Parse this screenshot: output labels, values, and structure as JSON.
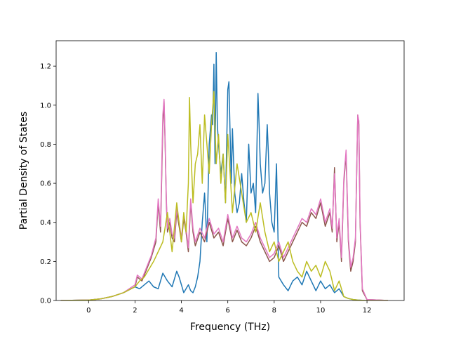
{
  "chart_data": {
    "type": "line",
    "title": "",
    "xlabel": "Frequency (THz)",
    "ylabel": "Partial Density of States",
    "xlim": [
      -1.4,
      13.6
    ],
    "ylim": [
      0,
      1.33
    ],
    "xticks": [
      0,
      2,
      4,
      6,
      8,
      10,
      12
    ],
    "yticks": [
      0.0,
      0.2,
      0.4,
      0.6,
      0.8,
      1.0,
      1.2
    ],
    "grid": false,
    "legend": "none",
    "series": [
      {
        "color": "#1f77b4",
        "x": [
          -1.2,
          0,
          0.5,
          1,
          1.5,
          2,
          2.2,
          2.4,
          2.6,
          2.8,
          3.0,
          3.2,
          3.4,
          3.6,
          3.8,
          3.9,
          4.0,
          4.1,
          4.2,
          4.3,
          4.4,
          4.5,
          4.6,
          4.7,
          4.8,
          4.9,
          5.0,
          5.1,
          5.2,
          5.3,
          5.35,
          5.4,
          5.45,
          5.5,
          5.55,
          5.6,
          5.7,
          5.8,
          5.9,
          6.0,
          6.05,
          6.1,
          6.15,
          6.2,
          6.3,
          6.4,
          6.5,
          6.6,
          6.7,
          6.8,
          6.9,
          7.0,
          7.1,
          7.2,
          7.3,
          7.35,
          7.4,
          7.5,
          7.6,
          7.7,
          7.75,
          7.8,
          7.9,
          8.0,
          8.1,
          8.2,
          8.4,
          8.6,
          8.8,
          9.0,
          9.2,
          9.4,
          9.6,
          9.8,
          10.0,
          10.2,
          10.4,
          10.6,
          10.8,
          11.0,
          11.2,
          11.4,
          11.6,
          11.8,
          12.0,
          12.9
        ],
        "y": [
          0,
          0.002,
          0.008,
          0.02,
          0.04,
          0.07,
          0.06,
          0.08,
          0.1,
          0.07,
          0.06,
          0.14,
          0.1,
          0.07,
          0.15,
          0.12,
          0.08,
          0.04,
          0.06,
          0.08,
          0.05,
          0.04,
          0.07,
          0.12,
          0.2,
          0.4,
          0.55,
          0.3,
          0.8,
          0.95,
          0.9,
          1.21,
          0.7,
          1.27,
          0.9,
          0.8,
          0.65,
          0.75,
          0.5,
          1.08,
          1.12,
          0.85,
          0.6,
          0.88,
          0.55,
          0.45,
          0.5,
          0.65,
          0.5,
          0.4,
          0.8,
          0.55,
          0.6,
          0.45,
          1.06,
          0.9,
          0.7,
          0.55,
          0.6,
          0.9,
          0.75,
          0.55,
          0.4,
          0.35,
          0.7,
          0.12,
          0.08,
          0.05,
          0.1,
          0.12,
          0.08,
          0.15,
          0.1,
          0.05,
          0.1,
          0.06,
          0.08,
          0.04,
          0.06,
          0.02,
          0.01,
          0.005,
          0.002,
          0.001,
          0,
          0
        ]
      },
      {
        "color": "#8c564b",
        "x": [
          -1.2,
          0,
          0.5,
          1,
          1.5,
          2,
          2.1,
          2.3,
          2.5,
          2.7,
          2.9,
          3.0,
          3.1,
          3.2,
          3.25,
          3.3,
          3.35,
          3.4,
          3.5,
          3.6,
          3.7,
          3.8,
          3.9,
          4.0,
          4.1,
          4.2,
          4.3,
          4.4,
          4.5,
          4.6,
          4.8,
          5.0,
          5.2,
          5.4,
          5.6,
          5.8,
          6.0,
          6.2,
          6.4,
          6.6,
          6.8,
          7.0,
          7.2,
          7.4,
          7.6,
          7.8,
          8.0,
          8.2,
          8.4,
          8.6,
          8.8,
          9.0,
          9.2,
          9.4,
          9.6,
          9.8,
          10.0,
          10.2,
          10.4,
          10.5,
          10.6,
          10.7,
          10.8,
          10.9,
          11.0,
          11.1,
          11.2,
          11.3,
          11.4,
          11.5,
          11.6,
          11.65,
          11.7,
          11.8,
          12.0,
          12.9
        ],
        "y": [
          0,
          0.002,
          0.008,
          0.02,
          0.04,
          0.07,
          0.12,
          0.1,
          0.16,
          0.22,
          0.3,
          0.5,
          0.35,
          0.9,
          1.02,
          0.8,
          0.5,
          0.35,
          0.4,
          0.32,
          0.3,
          0.45,
          0.38,
          0.3,
          0.42,
          0.35,
          0.25,
          0.5,
          0.35,
          0.28,
          0.35,
          0.3,
          0.4,
          0.32,
          0.35,
          0.28,
          0.42,
          0.3,
          0.36,
          0.3,
          0.28,
          0.32,
          0.38,
          0.3,
          0.25,
          0.2,
          0.22,
          0.28,
          0.2,
          0.25,
          0.3,
          0.35,
          0.4,
          0.38,
          0.45,
          0.42,
          0.5,
          0.38,
          0.45,
          0.35,
          0.68,
          0.3,
          0.4,
          0.2,
          0.6,
          0.75,
          0.3,
          0.15,
          0.2,
          0.3,
          0.95,
          0.9,
          0.4,
          0.05,
          0.005,
          0
        ]
      },
      {
        "color": "#e377c2",
        "x": [
          -1.2,
          0,
          0.5,
          1,
          1.5,
          2,
          2.1,
          2.3,
          2.5,
          2.7,
          2.9,
          3.0,
          3.1,
          3.2,
          3.25,
          3.3,
          3.35,
          3.4,
          3.5,
          3.6,
          3.7,
          3.8,
          3.9,
          4.0,
          4.1,
          4.2,
          4.3,
          4.4,
          4.5,
          4.6,
          4.8,
          5.0,
          5.2,
          5.4,
          5.6,
          5.8,
          6.0,
          6.2,
          6.4,
          6.6,
          6.8,
          7.0,
          7.2,
          7.4,
          7.6,
          7.8,
          8.0,
          8.2,
          8.4,
          8.6,
          8.8,
          9.0,
          9.2,
          9.4,
          9.6,
          9.8,
          10.0,
          10.2,
          10.4,
          10.5,
          10.6,
          10.7,
          10.8,
          10.9,
          11.0,
          11.1,
          11.2,
          11.3,
          11.4,
          11.5,
          11.6,
          11.65,
          11.7,
          11.8,
          12.0,
          12.9
        ],
        "y": [
          0,
          0.002,
          0.008,
          0.02,
          0.04,
          0.08,
          0.13,
          0.11,
          0.17,
          0.23,
          0.32,
          0.52,
          0.38,
          0.95,
          1.03,
          0.82,
          0.52,
          0.37,
          0.42,
          0.34,
          0.32,
          0.47,
          0.4,
          0.32,
          0.44,
          0.37,
          0.27,
          0.52,
          0.37,
          0.3,
          0.37,
          0.32,
          0.42,
          0.34,
          0.37,
          0.3,
          0.44,
          0.32,
          0.38,
          0.32,
          0.3,
          0.34,
          0.4,
          0.32,
          0.27,
          0.22,
          0.24,
          0.3,
          0.22,
          0.27,
          0.32,
          0.37,
          0.42,
          0.4,
          0.47,
          0.44,
          0.52,
          0.4,
          0.47,
          0.37,
          0.65,
          0.32,
          0.42,
          0.22,
          0.62,
          0.77,
          0.32,
          0.17,
          0.22,
          0.32,
          0.95,
          0.92,
          0.42,
          0.06,
          0.005,
          0
        ]
      },
      {
        "color": "#bcbd22",
        "x": [
          -1.2,
          0,
          0.5,
          1,
          1.5,
          2,
          2.2,
          2.4,
          2.6,
          2.8,
          3.0,
          3.2,
          3.4,
          3.6,
          3.8,
          4.0,
          4.1,
          4.2,
          4.3,
          4.35,
          4.4,
          4.5,
          4.6,
          4.7,
          4.8,
          4.9,
          5.0,
          5.1,
          5.2,
          5.3,
          5.4,
          5.5,
          5.6,
          5.7,
          5.8,
          5.9,
          6.0,
          6.2,
          6.4,
          6.6,
          6.8,
          7.0,
          7.2,
          7.4,
          7.6,
          7.8,
          8.0,
          8.2,
          8.4,
          8.6,
          8.8,
          9.0,
          9.2,
          9.4,
          9.6,
          9.8,
          10.0,
          10.2,
          10.4,
          10.6,
          10.8,
          11.0,
          11.2,
          11.4,
          11.6,
          11.8,
          12.0,
          12.9
        ],
        "y": [
          0,
          0.002,
          0.008,
          0.02,
          0.04,
          0.07,
          0.1,
          0.12,
          0.16,
          0.2,
          0.25,
          0.3,
          0.45,
          0.25,
          0.5,
          0.3,
          0.45,
          0.35,
          0.6,
          1.04,
          0.8,
          0.5,
          0.7,
          0.75,
          0.9,
          0.6,
          0.95,
          0.8,
          0.65,
          0.9,
          1.07,
          0.7,
          0.85,
          0.6,
          0.75,
          0.5,
          0.85,
          0.45,
          0.7,
          0.55,
          0.4,
          0.45,
          0.35,
          0.5,
          0.35,
          0.25,
          0.3,
          0.2,
          0.25,
          0.3,
          0.2,
          0.15,
          0.12,
          0.2,
          0.15,
          0.18,
          0.12,
          0.2,
          0.15,
          0.05,
          0.1,
          0.02,
          0.01,
          0.005,
          0.002,
          0.001,
          0,
          0
        ]
      }
    ]
  }
}
